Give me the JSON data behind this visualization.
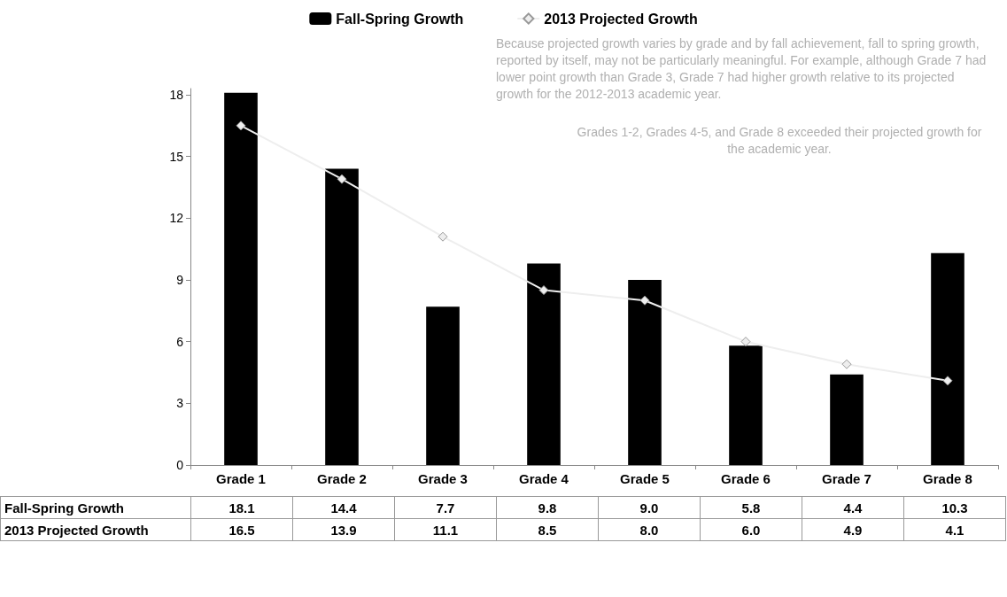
{
  "chart_data": {
    "type": "bar",
    "categories": [
      "Grade 1",
      "Grade 2",
      "Grade 3",
      "Grade 4",
      "Grade 5",
      "Grade 6",
      "Grade 7",
      "Grade 8"
    ],
    "series": [
      {
        "name": "Fall-Spring Growth",
        "color": "#000000",
        "values": [
          18.1,
          14.4,
          7.7,
          9.8,
          9.0,
          5.8,
          4.4,
          10.3
        ],
        "value_labels": [
          "18.1",
          "14.4",
          "7.7",
          "9.8",
          "9.0",
          "5.8",
          "4.4",
          "10.3"
        ]
      },
      {
        "name": "2013 Projected Growth",
        "type": "line",
        "color": "#eeeeee",
        "values": [
          16.5,
          13.9,
          11.1,
          8.5,
          8.0,
          6.0,
          4.9,
          4.1
        ],
        "value_labels": [
          "16.5",
          "13.9",
          "11.1",
          "8.5",
          "8.0",
          "6.0",
          "4.9",
          "4.1"
        ]
      }
    ],
    "ylim": [
      0,
      18.3
    ],
    "yticks": [
      0,
      3,
      6,
      9,
      12,
      15,
      18
    ],
    "grid": false,
    "legend": "top",
    "marker": "diamond",
    "annotations": [
      "Because projected growth varies by grade and by fall achievement, fall to spring growth, reported by itself, may not be particularly meaningful. For example, although Grade 7 had lower point growth than Grade 3, Grade 7 had higher growth relative to its projected growth for the 2012-2013 academic year.",
      "Grades 1-2, Grades 4-5, and Grade 8 exceeded their projected growth for the academic year."
    ]
  }
}
